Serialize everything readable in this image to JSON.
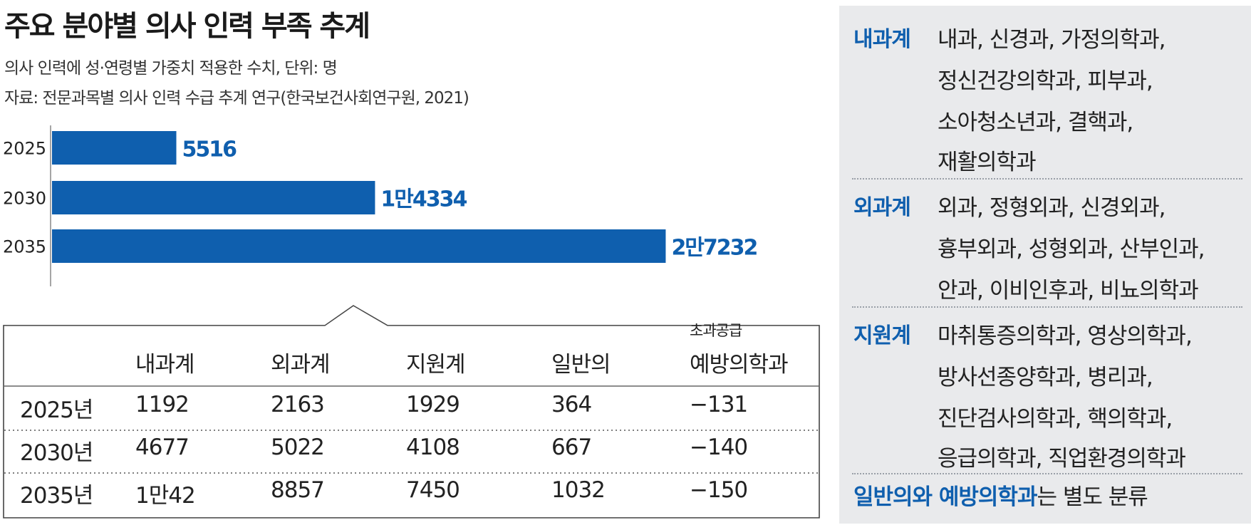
{
  "header": {
    "title": "주요 분야별 의사 인력 부족 추계",
    "subtitle1": "의사 인력에 성·연령별 가중치 적용한 수치, 단위: 명",
    "subtitle2": "자료: 전문과목별 의사 인력 수급 추계 연구(한국보건사회연구원, 2021)"
  },
  "chart_data": {
    "type": "bar",
    "orientation": "horizontal",
    "categories": [
      "2025",
      "2030",
      "2035"
    ],
    "values": [
      5516,
      14334,
      27232
    ],
    "value_labels": [
      "5516",
      "1만4334",
      "2만7232"
    ],
    "xlim": [
      0,
      30000
    ],
    "bar_color": "#0f5fae",
    "label_color": "#0f5fae",
    "grid": false,
    "legend": "none"
  },
  "table": {
    "small_header": "초과공급",
    "headers": [
      "",
      "내과계",
      "외과계",
      "지원계",
      "일반의",
      "예방의학과"
    ],
    "rows": [
      [
        "2025년",
        "1192",
        "2163",
        "1929",
        "364",
        "−131"
      ],
      [
        "2030년",
        "4677",
        "5022",
        "4108",
        "667",
        "−140"
      ],
      [
        "2035년",
        "1만42",
        "8857",
        "7450",
        "1032",
        "−150"
      ]
    ]
  },
  "sidebar": {
    "sections": [
      {
        "category": "내과계",
        "lines": [
          "내과, 신경과, 가정의학과,",
          "정신건강의학과, 피부과,",
          "소아청소년과, 결핵과,",
          "재활의학과"
        ]
      },
      {
        "category": "외과계",
        "lines": [
          "외과, 정형외과, 신경외과,",
          "흉부외과, 성형외과, 산부인과,",
          "안과, 이비인후과, 비뇨의학과"
        ]
      },
      {
        "category": "지원계",
        "lines": [
          "마취통증의학과, 영상의학과,",
          "방사선종양학과, 병리과,",
          "진단검사의학과, 핵의학과,",
          "응급의학과, 직업환경의학과"
        ]
      }
    ],
    "note_highlight": "일반의와 예방의학과",
    "note_rest": "는 별도 분류"
  },
  "colors": {
    "accent": "#0f5fae",
    "panel_bg": "#e9eaec"
  }
}
